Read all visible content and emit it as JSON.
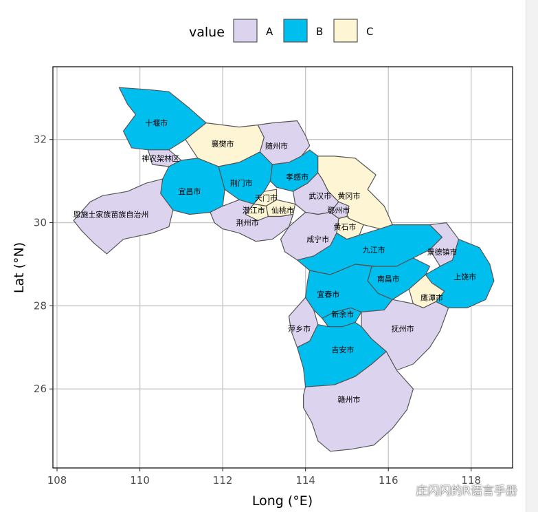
{
  "chart_data": {
    "type": "choropleth-map",
    "xlabel": "Long (°E)",
    "ylabel": "Lat (°N)",
    "xlim": [
      107.9,
      119.0
    ],
    "ylim": [
      24.1,
      33.75
    ],
    "x_ticks": [
      108,
      110,
      112,
      114,
      116,
      118
    ],
    "y_ticks": [
      26,
      28,
      30,
      32
    ],
    "grid": true,
    "legend": {
      "title": "value",
      "placement": "top",
      "entries": [
        {
          "label": "A",
          "color": "#dcd3ef"
        },
        {
          "label": "B",
          "color": "#00bfef"
        },
        {
          "label": "C",
          "color": "#fdf5d3"
        }
      ]
    },
    "regions": [
      {
        "name": "十堰市",
        "value": "B",
        "lon": 110.4,
        "lat": 32.4
      },
      {
        "name": "襄樊市",
        "value": "C",
        "lon": 112.0,
        "lat": 31.9
      },
      {
        "name": "随州市",
        "value": "A",
        "lon": 113.3,
        "lat": 31.85
      },
      {
        "name": "神农架林区",
        "value": "A",
        "lon": 110.5,
        "lat": 31.55
      },
      {
        "name": "宜昌市",
        "value": "B",
        "lon": 111.2,
        "lat": 30.75
      },
      {
        "name": "荆门市",
        "value": "B",
        "lon": 112.45,
        "lat": 30.95
      },
      {
        "name": "孝感市",
        "value": "B",
        "lon": 113.8,
        "lat": 31.1
      },
      {
        "name": "黄冈市",
        "value": "C",
        "lon": 115.05,
        "lat": 30.65
      },
      {
        "name": "恩施土家族苗族自治州",
        "value": "A",
        "lon": 109.3,
        "lat": 30.2
      },
      {
        "name": "天门市",
        "value": "C",
        "lon": 113.05,
        "lat": 30.6
      },
      {
        "name": "武汉市",
        "value": "A",
        "lon": 114.35,
        "lat": 30.65
      },
      {
        "name": "鄂州市",
        "value": "A",
        "lon": 114.8,
        "lat": 30.3
      },
      {
        "name": "潜江市",
        "value": "C",
        "lon": 112.75,
        "lat": 30.3
      },
      {
        "name": "仙桃市",
        "value": "C",
        "lon": 113.45,
        "lat": 30.3
      },
      {
        "name": "荆州市",
        "value": "A",
        "lon": 112.6,
        "lat": 30.0
      },
      {
        "name": "黄石市",
        "value": "C",
        "lon": 114.95,
        "lat": 29.9
      },
      {
        "name": "咸宁市",
        "value": "A",
        "lon": 114.3,
        "lat": 29.6
      },
      {
        "name": "九江市",
        "value": "B",
        "lon": 115.65,
        "lat": 29.35
      },
      {
        "name": "景德镇市",
        "value": "A",
        "lon": 117.3,
        "lat": 29.3
      },
      {
        "name": "上饶市",
        "value": "B",
        "lon": 117.85,
        "lat": 28.7
      },
      {
        "name": "南昌市",
        "value": "B",
        "lon": 116.0,
        "lat": 28.65
      },
      {
        "name": "鹰潭市",
        "value": "C",
        "lon": 117.05,
        "lat": 28.2
      },
      {
        "name": "宜春市",
        "value": "B",
        "lon": 114.55,
        "lat": 28.28
      },
      {
        "name": "新余市",
        "value": "B",
        "lon": 114.9,
        "lat": 27.8
      },
      {
        "name": "萍乡市",
        "value": "A",
        "lon": 113.85,
        "lat": 27.45
      },
      {
        "name": "抚州市",
        "value": "A",
        "lon": 116.35,
        "lat": 27.45
      },
      {
        "name": "吉安市",
        "value": "B",
        "lon": 114.9,
        "lat": 26.95
      },
      {
        "name": "赣州市",
        "value": "A",
        "lon": 115.05,
        "lat": 25.75
      }
    ]
  },
  "watermark": {
    "text": "庄闪闪的R语言手册"
  }
}
